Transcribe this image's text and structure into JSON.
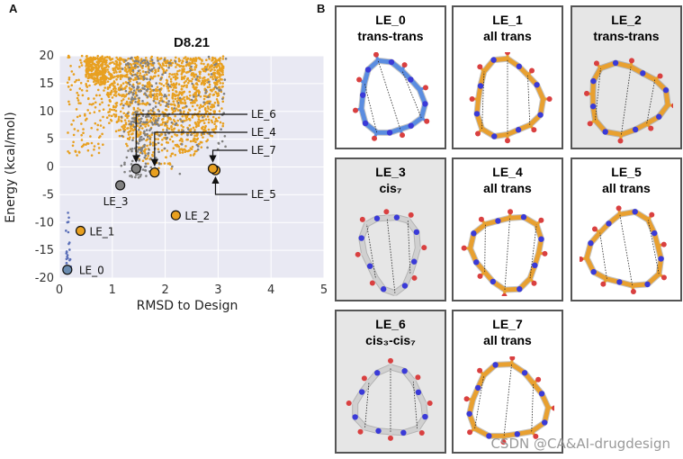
{
  "panel_a_letter": "A",
  "panel_b_letter": "B",
  "chart_data": {
    "type": "scatter",
    "title": "D8.21",
    "xlabel": "RMSD to Design",
    "ylabel": "Energy (kcal/mol)",
    "xlim": [
      0,
      5
    ],
    "ylim": [
      -20,
      20
    ],
    "xticks": [
      0,
      1,
      2,
      3,
      4,
      5
    ],
    "yticks": [
      -20,
      -15,
      -10,
      -5,
      0,
      5,
      10,
      15,
      20
    ],
    "grid": true,
    "series": [
      {
        "name": "orange designs",
        "color": "#e8a020",
        "description_only": false
      },
      {
        "name": "gray designs",
        "color": "#808080"
      },
      {
        "name": "blue designs",
        "color": "#5b6fb8"
      }
    ],
    "highlighted_points": [
      {
        "label": "LE_0",
        "x": 0.15,
        "y": -18.5,
        "color": "#6a8bb0"
      },
      {
        "label": "LE_1",
        "x": 0.4,
        "y": -11.5,
        "color": "#e8a020"
      },
      {
        "label": "LE_2",
        "x": 2.2,
        "y": -8.7,
        "color": "#e8a020"
      },
      {
        "label": "LE_3",
        "x": 1.15,
        "y": -3.3,
        "color": "#808080"
      },
      {
        "label": "LE_4",
        "x": 1.8,
        "y": -1.0,
        "color": "#e8a020"
      },
      {
        "label": "LE_5",
        "x": 2.95,
        "y": -0.6,
        "color": "#e8a020"
      },
      {
        "label": "LE_6",
        "x": 1.45,
        "y": -0.3,
        "color": "#808080"
      },
      {
        "label": "LE_7",
        "x": 2.9,
        "y": -0.3,
        "color": "#e8a020"
      }
    ]
  },
  "structures": [
    {
      "name": "LE_0",
      "conformation": "trans-trans",
      "color": "#5b8de0",
      "shaded": false
    },
    {
      "name": "LE_1",
      "conformation": "all trans",
      "color": "#e8a030",
      "shaded": false
    },
    {
      "name": "LE_2",
      "conformation": "trans-trans",
      "color": "#e8a030",
      "shaded": true
    },
    {
      "name": "LE_3",
      "conformation": "cis₇",
      "color": "#d0d0d0",
      "shaded": true
    },
    {
      "name": "LE_4",
      "conformation": "all trans",
      "color": "#e8a030",
      "shaded": false
    },
    {
      "name": "LE_5",
      "conformation": "all trans",
      "color": "#e8a030",
      "shaded": false
    },
    {
      "name": "LE_6",
      "conformation": "cis₃-cis₇",
      "color": "#d0d0d0",
      "shaded": true
    },
    {
      "name": "LE_7",
      "conformation": "all trans",
      "color": "#e8a030",
      "shaded": false
    }
  ],
  "watermark": "CSDN @CA&AI-drugdesign"
}
